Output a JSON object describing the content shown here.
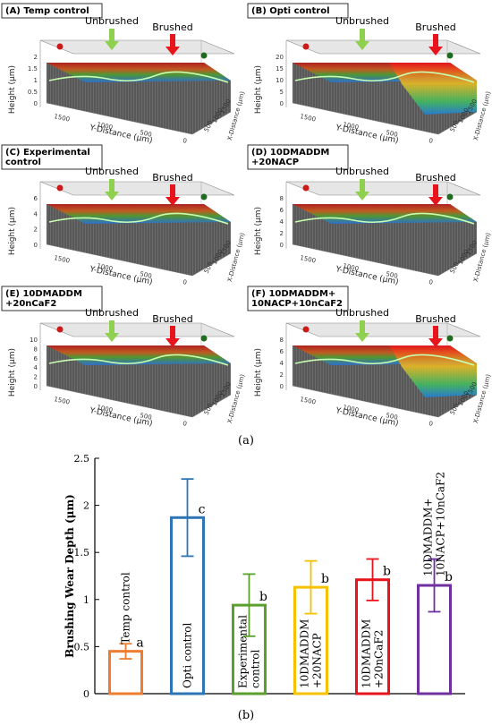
{
  "surface_panels": [
    {
      "label": "(A) Temp control",
      "label_lines": [
        "(A) Temp control"
      ],
      "unbrushed": "Unbrushed",
      "brushed": "Brushed",
      "z_label": "Height (μm)",
      "x_label": "Y-Distance (μm)",
      "y_label": "X-Distance (μm)",
      "z_ticks": [
        "0",
        "0.5",
        "1",
        "1.5",
        "2"
      ],
      "x_ticks": [
        "1500",
        "1000",
        "500",
        "0"
      ],
      "y_ticks": [
        "500",
        "1000",
        "1500"
      ],
      "brushed_step": false
    },
    {
      "label": "(B) Opti control",
      "label_lines": [
        "(B) Opti control"
      ],
      "unbrushed": "Unbrushed",
      "brushed": "Brushed",
      "z_label": "Height (μm)",
      "x_label": "Y-Distance (μm)",
      "y_label": "X-Distance (μm)",
      "z_ticks": [
        "0",
        "5",
        "10",
        "15",
        "20"
      ],
      "x_ticks": [
        "1500",
        "1000",
        "500",
        "0"
      ],
      "y_ticks": [
        "500",
        "1000",
        "1500"
      ],
      "brushed_step": true
    },
    {
      "label": "(C) Experimental control",
      "label_lines": [
        "(C) Experimental",
        "control"
      ],
      "unbrushed": "Unbrushed",
      "brushed": "Brushed",
      "z_label": "Height (μm)",
      "x_label": "Y-Distance (μm)",
      "y_label": "X-Distance (μm)",
      "z_ticks": [
        "0",
        "2",
        "4",
        "6"
      ],
      "x_ticks": [
        "1500",
        "1000",
        "500",
        "0"
      ],
      "y_ticks": [
        "500",
        "1000",
        "1500"
      ],
      "brushed_step": false
    },
    {
      "label": "(D) 10DMADDM +20NACP",
      "label_lines": [
        "(D) 10DMADDM",
        "+20NACP"
      ],
      "unbrushed": "Unbrushed",
      "brushed": "Brushed",
      "z_label": "Height (μm)",
      "x_label": "Y-Distance (μm)",
      "y_label": "X-Distance (μm)",
      "z_ticks": [
        "0",
        "2",
        "4",
        "6",
        "8"
      ],
      "x_ticks": [
        "1500",
        "1000",
        "500",
        "0"
      ],
      "y_ticks": [
        "500",
        "1000",
        "1500"
      ],
      "brushed_step": false
    },
    {
      "label": "(E) 10DMADDM +20nCaF2",
      "label_lines": [
        "(E) 10DMADDM",
        "+20nCaF2"
      ],
      "unbrushed": "Unbrushed",
      "brushed": "Brushed",
      "z_label": "Height (μm)",
      "x_label": "Y-Distance (μm)",
      "y_label": "X-Distance (μm)",
      "z_ticks": [
        "0",
        "2",
        "4",
        "6",
        "8",
        "10"
      ],
      "x_ticks": [
        "1500",
        "1000",
        "500",
        "0"
      ],
      "y_ticks": [
        "500",
        "1000",
        "1500"
      ],
      "brushed_step": false
    },
    {
      "label": "(F) 10DMADDM+ 10NACP+10nCaF2",
      "label_lines": [
        "(F) 10DMADDM+",
        "10NACP+10nCaF2"
      ],
      "unbrushed": "Unbrushed",
      "brushed": "Brushed",
      "z_label": "Height (μm)",
      "x_label": "Y-Distance (μm)",
      "y_label": "X-Distance (μm)",
      "z_ticks": [
        "0",
        "2",
        "4",
        "6",
        "8"
      ],
      "x_ticks": [
        "1500",
        "1000",
        "500",
        "0"
      ],
      "y_ticks": [
        "500",
        "1000",
        "1500"
      ],
      "brushed_step": true
    }
  ],
  "subfigure_labels": {
    "a": "(a)",
    "b": "(b)"
  },
  "colors": {
    "unbrushed_arrow": "#8fd14f",
    "brushed_arrow": "#e8141c",
    "profile_line": "#c8ffb0",
    "surface_high": "#b41e1e",
    "surface_mid": "#3a9a3a",
    "surface_low": "#2b6fd6"
  },
  "chart_data": {
    "type": "bar",
    "bar_style": "outline",
    "categories": [
      {
        "label": "Temp control",
        "lines": [
          "Temp control"
        ],
        "color": "#ed7d31"
      },
      {
        "label": "Opti control",
        "lines": [
          "Opti control"
        ],
        "color": "#2e75b6"
      },
      {
        "label": "Experimental control",
        "lines": [
          "Experimental",
          "control"
        ],
        "color": "#5aa02c"
      },
      {
        "label": "10DMADDM +20NACP",
        "lines": [
          "10DMADDM",
          "+20NACP"
        ],
        "color": "#f6c100"
      },
      {
        "label": "10DMADDM +20nCaF2",
        "lines": [
          "10DMADDM",
          "+20nCaF2"
        ],
        "color": "#e8141c"
      },
      {
        "label": "10DMADDM+ 10NACP+10nCaF2",
        "lines": [
          "10DMADDM+",
          "10NACP+10nCaF2"
        ],
        "color": "#7030a0"
      }
    ],
    "values": [
      0.45,
      1.87,
      0.94,
      1.13,
      1.21,
      1.15
    ],
    "errors": [
      0.08,
      0.41,
      0.33,
      0.28,
      0.22,
      0.28
    ],
    "significance": [
      "a",
      "c",
      "b",
      "b",
      "b",
      "b"
    ],
    "ylabel": "Brushing Wear Depth (μm)",
    "xlabel": "",
    "ylim": [
      0,
      2.5
    ],
    "yticks": [
      0,
      0.5,
      1,
      1.5,
      2,
      2.5
    ],
    "ytick_labels": [
      "0",
      "0.5",
      "1",
      "1.5",
      "2",
      "2.5"
    ],
    "grid": false,
    "legend": "none"
  }
}
